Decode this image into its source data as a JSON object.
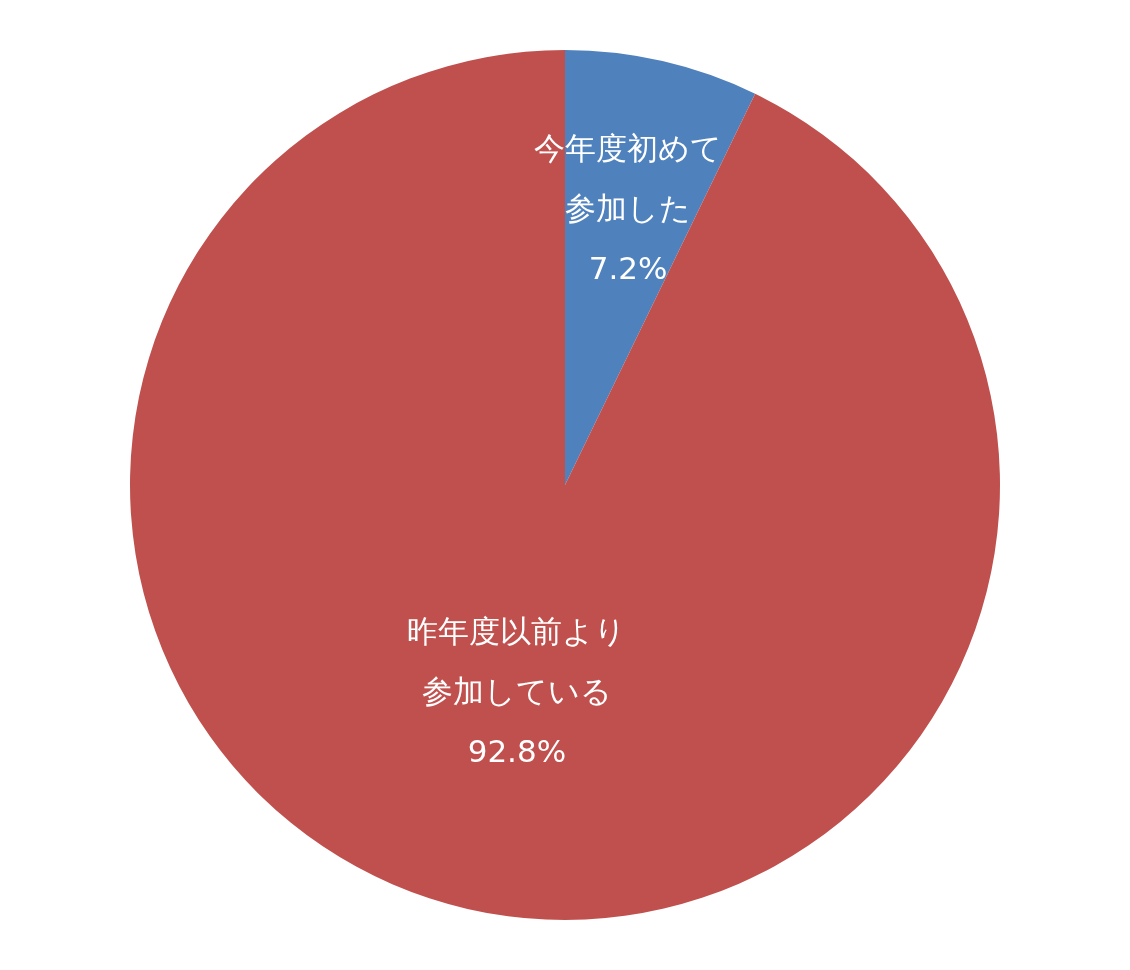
{
  "chart_data": {
    "type": "pie",
    "categories": [
      "今年度初めて参加した",
      "昨年度以前より参加している"
    ],
    "values": [
      7.2,
      92.8
    ],
    "value_labels": [
      "7.2%",
      "92.8%"
    ],
    "colors": [
      "#4f81bd",
      "#c0504d"
    ]
  }
}
